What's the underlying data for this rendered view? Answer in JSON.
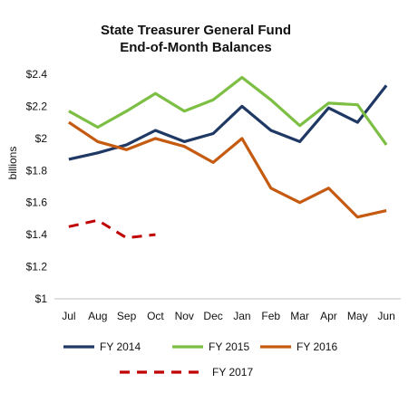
{
  "chart_data": {
    "type": "line",
    "title": "State Treasurer General Fund",
    "subtitle": "End-of-Month Balances",
    "xlabel": "",
    "ylabel": "billions",
    "categories": [
      "Jul",
      "Aug",
      "Sep",
      "Oct",
      "Nov",
      "Dec",
      "Jan",
      "Feb",
      "Mar",
      "Apr",
      "May",
      "Jun"
    ],
    "ylim": [
      1,
      2.4
    ],
    "yticks": [
      1,
      1.2,
      1.4,
      1.6,
      1.8,
      2,
      2.2,
      2.4
    ],
    "ytick_labels": [
      "$1",
      "$1.2",
      "$1.4",
      "$1.6",
      "$1.8",
      "$2",
      "$2.2",
      "$2.4"
    ],
    "grid": false,
    "legend_position": "bottom",
    "series": [
      {
        "name": "FY 2014",
        "color": "#1f3864",
        "dashed": false,
        "values": [
          1.87,
          1.91,
          1.96,
          2.05,
          1.98,
          2.03,
          2.2,
          2.05,
          1.98,
          2.19,
          2.1,
          2.33
        ]
      },
      {
        "name": "FY 2015",
        "color": "#7cbf44",
        "dashed": false,
        "values": [
          2.17,
          2.07,
          2.17,
          2.28,
          2.17,
          2.24,
          2.38,
          2.24,
          2.08,
          2.22,
          2.21,
          1.96
        ]
      },
      {
        "name": "FY 2016",
        "color": "#c55a11",
        "dashed": false,
        "values": [
          2.1,
          1.98,
          1.93,
          2.0,
          1.95,
          1.85,
          2.0,
          1.69,
          1.6,
          1.69,
          1.51,
          1.55
        ]
      },
      {
        "name": "FY 2017",
        "color": "#c00000",
        "dashed": true,
        "values": [
          1.45,
          1.49,
          1.38,
          1.4,
          null,
          null,
          null,
          null,
          null,
          null,
          null,
          null
        ]
      }
    ]
  }
}
